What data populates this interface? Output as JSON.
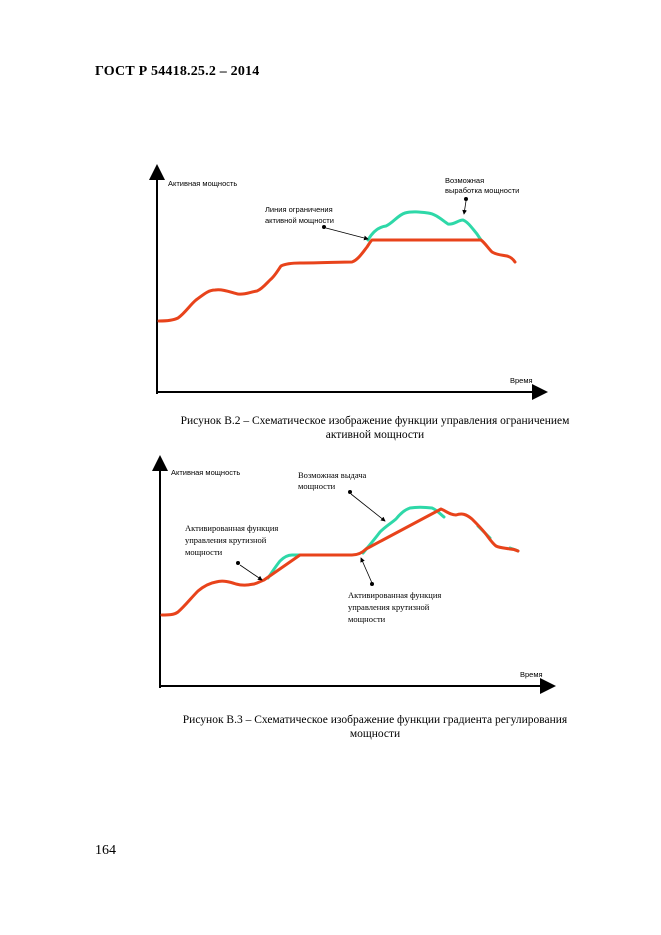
{
  "header": {
    "standard": "ГОСТ Р 54418.25.2 – 2014"
  },
  "figure_b2": {
    "y_axis_label": "Активная мощность",
    "x_axis_label": "Время",
    "annotation_limit_line": [
      "Линия ограничения",
      "активной мощности"
    ],
    "annotation_possible_output": [
      "Возможная",
      "выработка мощности"
    ],
    "caption": [
      "Рисунок В.2 – Схематическое изображение функции управления ограничением",
      "активной мощности"
    ]
  },
  "figure_b3": {
    "y_axis_label": "Активная мощность",
    "x_axis_label": "Время",
    "annotation_possible_output": [
      "Возможная выдача",
      "мощности"
    ],
    "annotation_ramp_left": [
      "Активированная функция",
      "управления крутизной",
      "мощности"
    ],
    "annotation_ramp_right": [
      "Активированная функция",
      "управления крутизной",
      "мощности"
    ],
    "caption": [
      "Рисунок В.3 – Схематическое изображение функции градиента регулирования",
      "мощности"
    ]
  },
  "colors": {
    "actual_power": "#e8431b",
    "possible_power": "#2ed8a8"
  },
  "page_number": "164"
}
